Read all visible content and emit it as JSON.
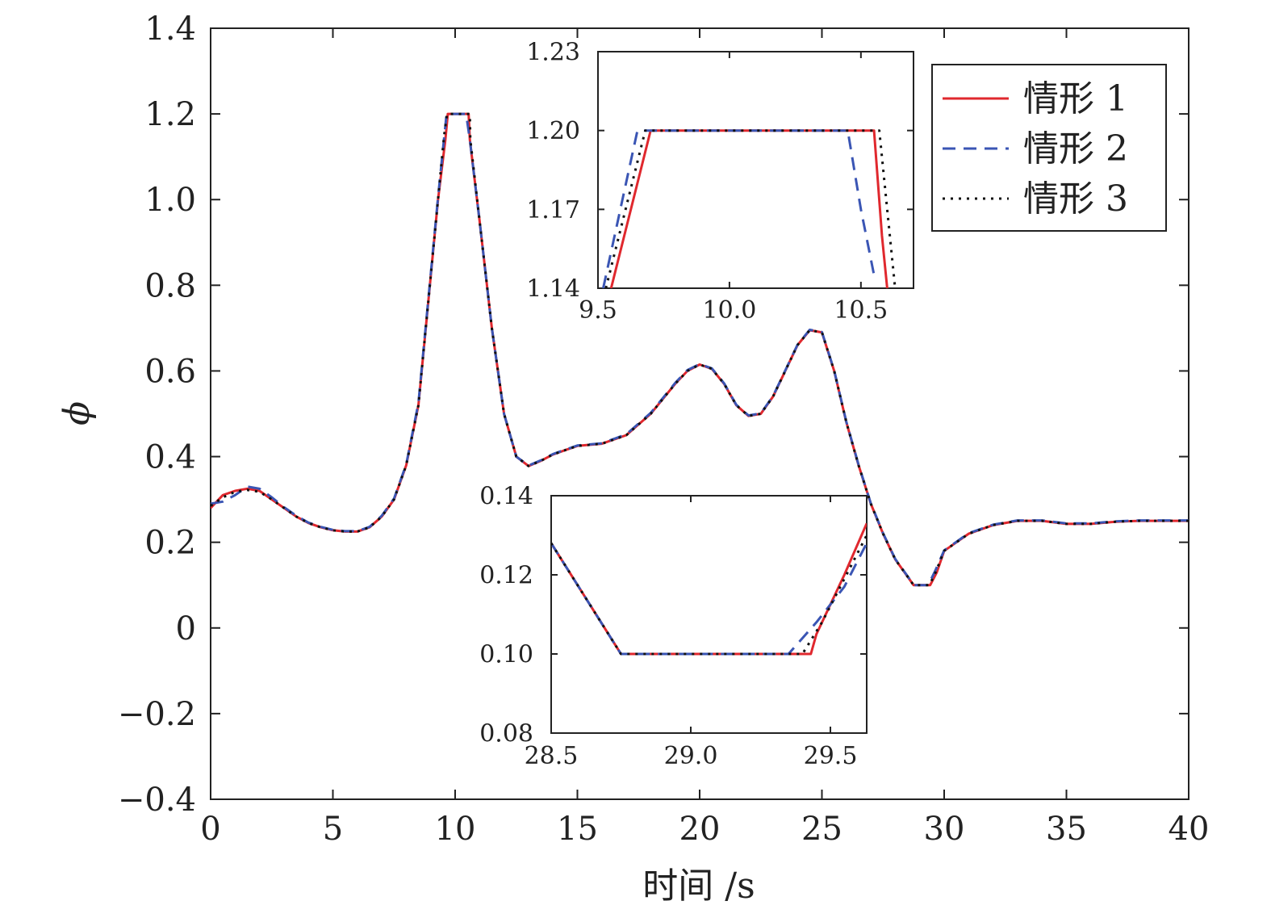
{
  "chart_data": [
    {
      "type": "line",
      "role": "main",
      "xlabel": "时间 /s",
      "ylabel": "ϕ",
      "xlim": [
        0,
        40
      ],
      "ylim": [
        -0.4,
        1.4
      ],
      "xticks": [
        0,
        5,
        10,
        15,
        20,
        25,
        30,
        35,
        40
      ],
      "xtick_labels": [
        "0",
        "5",
        "10",
        "15",
        "20",
        "25",
        "30",
        "35",
        "40"
      ],
      "yticks": [
        -0.4,
        -0.2,
        0,
        0.2,
        0.4,
        0.6,
        0.8,
        1.0,
        1.2,
        1.4
      ],
      "ytick_labels": [
        "−0.4",
        "−0.2",
        "0",
        "0.2",
        "0.4",
        "0.6",
        "0.8",
        "1.0",
        "1.2",
        "1.4"
      ],
      "grid": false,
      "legend_position": "top-right",
      "series": [
        {
          "name": "情形 1",
          "color": "#e0282e",
          "style": "solid",
          "x": [
            0,
            0.5,
            1,
            1.5,
            2,
            2.5,
            3,
            3.5,
            4,
            4.5,
            5,
            5.5,
            6,
            6.5,
            7,
            7.5,
            8,
            8.5,
            9,
            9.3,
            9.6,
            9.7,
            10.0,
            10.3,
            10.55,
            10.6,
            11,
            11.5,
            12,
            12.5,
            13,
            13.5,
            14,
            14.5,
            15,
            16,
            17,
            18,
            19,
            19.5,
            20,
            20.5,
            21,
            21.5,
            22,
            22.5,
            23,
            23.5,
            24,
            24.5,
            25,
            25.5,
            26,
            26.5,
            27,
            27.5,
            28,
            28.5,
            28.75,
            29.43,
            29.7,
            30,
            30.5,
            31,
            32,
            33,
            34,
            35,
            36,
            37,
            38,
            39,
            40
          ],
          "y": [
            0.28,
            0.31,
            0.32,
            0.325,
            0.32,
            0.3,
            0.28,
            0.26,
            0.245,
            0.235,
            0.228,
            0.225,
            0.225,
            0.235,
            0.26,
            0.3,
            0.38,
            0.52,
            0.82,
            1.0,
            1.14,
            1.2,
            1.2,
            1.2,
            1.2,
            1.14,
            0.95,
            0.7,
            0.5,
            0.4,
            0.378,
            0.39,
            0.405,
            0.415,
            0.425,
            0.43,
            0.45,
            0.5,
            0.57,
            0.6,
            0.615,
            0.605,
            0.57,
            0.52,
            0.495,
            0.5,
            0.54,
            0.6,
            0.66,
            0.695,
            0.69,
            0.6,
            0.48,
            0.38,
            0.29,
            0.22,
            0.16,
            0.12,
            0.1,
            0.1,
            0.13,
            0.18,
            0.2,
            0.22,
            0.24,
            0.25,
            0.25,
            0.243,
            0.243,
            0.248,
            0.25,
            0.25,
            0.25
          ]
        },
        {
          "name": "情形 2",
          "color": "#3a55b4",
          "style": "dashed",
          "x": [
            0,
            0.5,
            1,
            1.5,
            2,
            2.5,
            3,
            3.5,
            4,
            4.5,
            5,
            5.5,
            6,
            6.5,
            7,
            7.5,
            8,
            8.5,
            9,
            9.3,
            9.55,
            9.65,
            10.0,
            10.3,
            10.45,
            10.6,
            11,
            11.5,
            12,
            12.5,
            13,
            13.5,
            14,
            14.5,
            15,
            16,
            17,
            18,
            19,
            19.5,
            20,
            20.5,
            21,
            21.5,
            22,
            22.5,
            23,
            23.5,
            24,
            24.5,
            25,
            25.5,
            26,
            26.5,
            27,
            27.5,
            28,
            28.5,
            28.75,
            29.35,
            29.63,
            30,
            30.5,
            31,
            32,
            33,
            34,
            35,
            36,
            37,
            38,
            39,
            40
          ],
          "y": [
            0.29,
            0.295,
            0.31,
            0.33,
            0.325,
            0.305,
            0.282,
            0.262,
            0.246,
            0.236,
            0.229,
            0.226,
            0.226,
            0.236,
            0.262,
            0.302,
            0.382,
            0.525,
            0.825,
            1.005,
            1.145,
            1.2,
            1.2,
            1.2,
            1.2,
            1.14,
            0.95,
            0.7,
            0.5,
            0.4,
            0.379,
            0.391,
            0.406,
            0.416,
            0.426,
            0.431,
            0.452,
            0.502,
            0.572,
            0.602,
            0.616,
            0.606,
            0.571,
            0.521,
            0.496,
            0.501,
            0.541,
            0.601,
            0.661,
            0.696,
            0.691,
            0.601,
            0.481,
            0.381,
            0.291,
            0.221,
            0.161,
            0.121,
            0.1,
            0.1,
            0.133,
            0.181,
            0.201,
            0.221,
            0.241,
            0.251,
            0.251,
            0.244,
            0.244,
            0.249,
            0.251,
            0.251,
            0.251
          ]
        },
        {
          "name": "情形 3",
          "color": "#111111",
          "style": "dotted",
          "x": [
            0,
            0.5,
            1,
            1.5,
            2,
            2.5,
            3,
            3.5,
            4,
            4.5,
            5,
            5.5,
            6,
            6.5,
            7,
            7.5,
            8,
            8.5,
            9,
            9.3,
            9.55,
            9.67,
            10.0,
            10.3,
            10.6,
            10.62,
            11,
            11.5,
            12,
            12.5,
            13,
            13.5,
            14,
            14.5,
            15,
            16,
            17,
            18,
            19,
            19.5,
            20,
            20.5,
            21,
            21.5,
            22,
            22.5,
            23,
            23.5,
            24,
            24.5,
            25,
            25.5,
            26,
            26.5,
            27,
            27.5,
            28,
            28.5,
            28.75,
            29.4,
            29.65,
            30,
            30.5,
            31,
            32,
            33,
            34,
            35,
            36,
            37,
            38,
            39,
            40
          ],
          "y": [
            0.285,
            0.305,
            0.318,
            0.322,
            0.318,
            0.3,
            0.28,
            0.26,
            0.245,
            0.235,
            0.228,
            0.225,
            0.225,
            0.235,
            0.26,
            0.3,
            0.38,
            0.52,
            0.82,
            1.0,
            1.15,
            1.2,
            1.2,
            1.2,
            1.2,
            1.14,
            0.95,
            0.7,
            0.5,
            0.4,
            0.378,
            0.39,
            0.405,
            0.415,
            0.425,
            0.43,
            0.45,
            0.5,
            0.57,
            0.6,
            0.615,
            0.605,
            0.57,
            0.52,
            0.495,
            0.5,
            0.54,
            0.6,
            0.66,
            0.695,
            0.69,
            0.6,
            0.48,
            0.38,
            0.29,
            0.22,
            0.16,
            0.12,
            0.1,
            0.1,
            0.13,
            0.18,
            0.2,
            0.22,
            0.24,
            0.25,
            0.25,
            0.243,
            0.243,
            0.248,
            0.25,
            0.25,
            0.25
          ]
        }
      ]
    },
    {
      "type": "line",
      "role": "inset-peak",
      "xlim": [
        9.5,
        10.7
      ],
      "ylim": [
        1.14,
        1.23
      ],
      "xticks": [
        9.5,
        10.0,
        10.5
      ],
      "xtick_labels": [
        "9.5",
        "10.0",
        "10.5"
      ],
      "yticks": [
        1.14,
        1.17,
        1.2,
        1.23
      ],
      "ytick_labels": [
        "1.14",
        "1.17",
        "1.20",
        "1.23"
      ],
      "series": [
        {
          "name": "情形 1",
          "color": "#e0282e",
          "style": "solid",
          "x": [
            9.55,
            9.7,
            10.55,
            10.58,
            10.6
          ],
          "y": [
            1.14,
            1.2,
            1.2,
            1.16,
            1.14
          ]
        },
        {
          "name": "情形 2",
          "color": "#3a55b4",
          "style": "dashed",
          "x": [
            9.52,
            9.65,
            10.45,
            10.5,
            10.55
          ],
          "y": [
            1.14,
            1.2,
            1.2,
            1.17,
            1.145
          ]
        },
        {
          "name": "情形 3",
          "color": "#111111",
          "style": "dotted",
          "x": [
            9.53,
            9.68,
            10.57,
            10.6,
            10.63
          ],
          "y": [
            1.14,
            1.2,
            1.2,
            1.17,
            1.14
          ]
        }
      ]
    },
    {
      "type": "line",
      "role": "inset-trough",
      "xlim": [
        28.5,
        29.63
      ],
      "ylim": [
        0.08,
        0.14
      ],
      "xticks": [
        28.5,
        29.0,
        29.5
      ],
      "xtick_labels": [
        "28.5",
        "29.0",
        "29.5"
      ],
      "yticks": [
        0.08,
        0.1,
        0.12,
        0.14
      ],
      "ytick_labels": [
        "0.08",
        "0.10",
        "0.12",
        "0.14"
      ],
      "series": [
        {
          "name": "情形 1",
          "color": "#e0282e",
          "style": "solid",
          "x": [
            28.5,
            28.75,
            29.43,
            29.45,
            29.55,
            29.63
          ],
          "y": [
            0.128,
            0.1,
            0.1,
            0.105,
            0.12,
            0.133
          ]
        },
        {
          "name": "情形 2",
          "color": "#3a55b4",
          "style": "dashed",
          "x": [
            28.5,
            28.75,
            29.35,
            29.45,
            29.55,
            29.63
          ],
          "y": [
            0.128,
            0.1,
            0.1,
            0.108,
            0.117,
            0.128
          ]
        },
        {
          "name": "情形 3",
          "color": "#111111",
          "style": "dotted",
          "x": [
            28.5,
            28.75,
            29.4,
            29.47,
            29.55,
            29.63
          ],
          "y": [
            0.128,
            0.1,
            0.1,
            0.108,
            0.119,
            0.13
          ]
        }
      ]
    }
  ]
}
